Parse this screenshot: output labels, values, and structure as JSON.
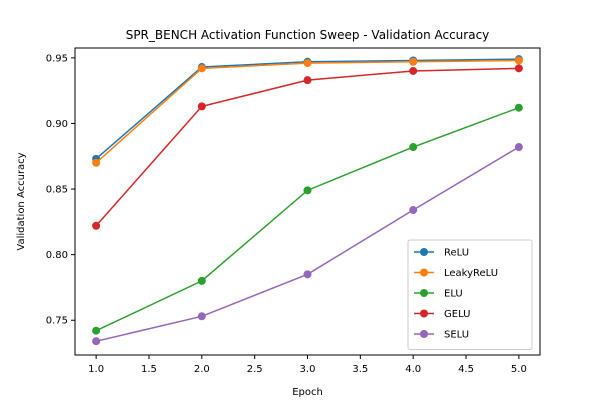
{
  "chart_data": {
    "type": "line",
    "title": "SPR_BENCH Activation Function Sweep - Validation Accuracy",
    "xlabel": "Epoch",
    "ylabel": "Validation Accuracy",
    "x": [
      1.0,
      2.0,
      3.0,
      4.0,
      5.0
    ],
    "xlim": [
      0.8,
      5.2
    ],
    "ylim": [
      0.7235,
      0.9575
    ],
    "xticks": [
      1.0,
      1.5,
      2.0,
      2.5,
      3.0,
      3.5,
      4.0,
      4.5,
      5.0
    ],
    "xtick_labels": [
      "1.0",
      "1.5",
      "2.0",
      "2.5",
      "3.0",
      "3.5",
      "4.0",
      "4.5",
      "5.0"
    ],
    "yticks": [
      0.75,
      0.8,
      0.85,
      0.9,
      0.95
    ],
    "ytick_labels": [
      "0.75",
      "0.80",
      "0.85",
      "0.90",
      "0.95"
    ],
    "grid": false,
    "legend_position": "lower-right",
    "series": [
      {
        "name": "ReLU",
        "color": "#1f77b4",
        "values": [
          0.873,
          0.943,
          0.947,
          0.948,
          0.949
        ]
      },
      {
        "name": "LeakyReLU",
        "color": "#ff7f0e",
        "values": [
          0.87,
          0.942,
          0.946,
          0.947,
          0.948
        ]
      },
      {
        "name": "ELU",
        "color": "#2ca02c",
        "values": [
          0.742,
          0.78,
          0.849,
          0.882,
          0.912
        ]
      },
      {
        "name": "GELU",
        "color": "#d62728",
        "values": [
          0.822,
          0.913,
          0.933,
          0.94,
          0.942
        ]
      },
      {
        "name": "SELU",
        "color": "#9467bd",
        "values": [
          0.734,
          0.753,
          0.785,
          0.834,
          0.882
        ]
      }
    ]
  }
}
